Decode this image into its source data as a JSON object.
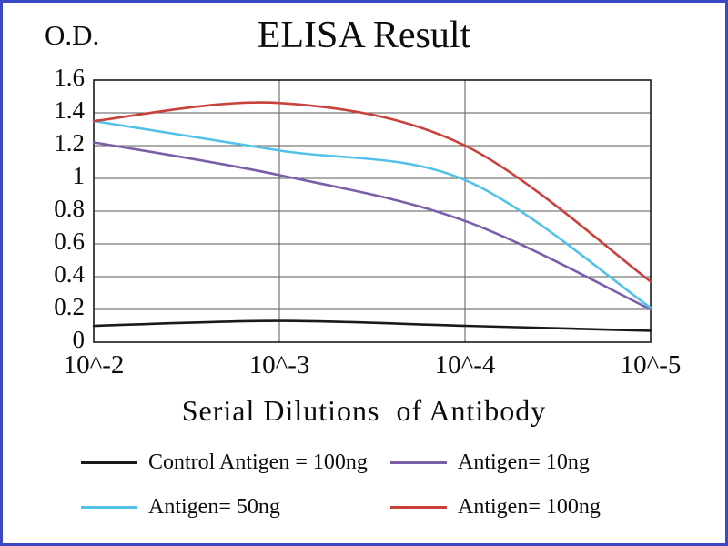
{
  "frame": {
    "border_color": "#3b47c4",
    "background": "#ffffff"
  },
  "chart_data": {
    "type": "line",
    "title": "ELISA Result",
    "ylabel": "O.D.",
    "xlabel": "Serial Dilutions  of Antibody",
    "x_tick_labels": [
      "10^-2",
      "10^-3",
      "10^-4",
      "10^-5"
    ],
    "y_tick_labels": [
      "0",
      "0.2",
      "0.4",
      "0.6",
      "0.8",
      "1",
      "1.2",
      "1.4",
      "1.6"
    ],
    "y_ticks": [
      0,
      0.2,
      0.4,
      0.6,
      0.8,
      1,
      1.2,
      1.4,
      1.6
    ],
    "ylim": [
      0,
      1.6
    ],
    "grid": true,
    "grid_color": "#5a5a5a",
    "axis_color": "#1a1a1a",
    "text_color": "#0c0c0c",
    "legend_position": "bottom",
    "series": [
      {
        "name": "Control Antigen = 100ng",
        "color": "#1a1a1a",
        "values": [
          0.1,
          0.13,
          0.1,
          0.07
        ]
      },
      {
        "name": "Antigen= 10ng",
        "color": "#7a5fa8",
        "values": [
          1.22,
          1.02,
          0.74,
          0.2
        ]
      },
      {
        "name": "Antigen= 50ng",
        "color": "#53c1e8",
        "values": [
          1.35,
          1.17,
          0.99,
          0.21
        ]
      },
      {
        "name": "Antigen= 100ng",
        "color": "#c8413a",
        "values": [
          1.35,
          1.46,
          1.2,
          0.37
        ]
      }
    ]
  }
}
